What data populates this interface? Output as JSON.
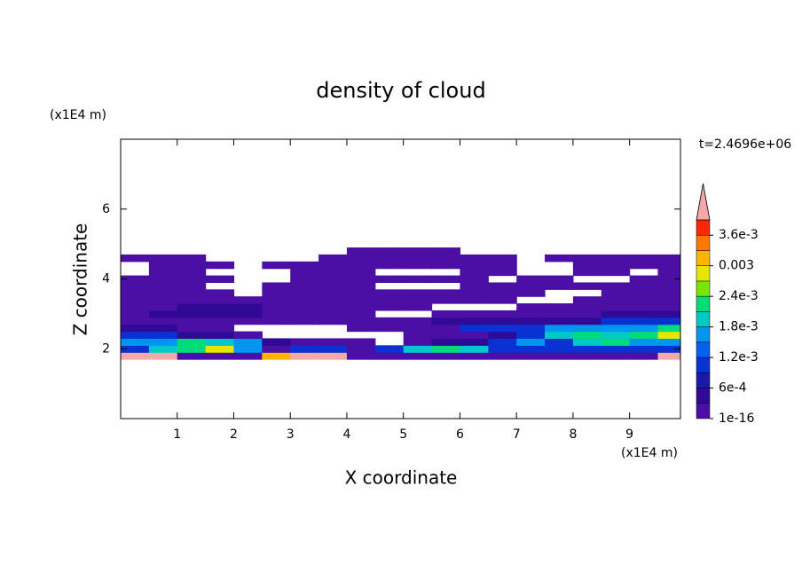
{
  "chart_data": {
    "type": "contour",
    "title": "density of cloud",
    "x_label": "X coordinate",
    "y_label": "Z coordinate",
    "x_unit": "(x1E4 m)",
    "y_unit": "(x1E4 m)",
    "annotation": "t=2.4696e+06",
    "xlim": [
      0,
      9.9
    ],
    "ylim": [
      0,
      8
    ],
    "xticks": [
      1,
      2,
      3,
      4,
      5,
      6,
      7,
      8,
      9
    ],
    "yticks": [
      2,
      4,
      6
    ],
    "x": [
      0.25,
      0.75,
      1.25,
      1.75,
      2.25,
      2.75,
      3.25,
      3.75,
      4.25,
      4.75,
      5.25,
      5.75,
      6.25,
      6.75,
      7.25,
      7.75,
      8.25,
      8.75,
      9.25,
      9.75
    ],
    "y": [
      1.8,
      2.0,
      2.2,
      2.4,
      2.6,
      2.8,
      3.0,
      3.2,
      3.4,
      3.6,
      3.8,
      4.0,
      4.2,
      4.4,
      4.6,
      4.8
    ],
    "z": [
      [
        0.0045,
        0.0045,
        0.0001,
        0.0001,
        0.0001,
        0.0032,
        0.0045,
        0.0045,
        0.0001,
        0.0001,
        0.0001,
        0.0001,
        0.0001,
        0.0001,
        0.0001,
        0.0001,
        0.0001,
        0.0001,
        0.0001,
        0.0045
      ],
      [
        0.001,
        0.002,
        0.0023,
        0.0028,
        0.0016,
        0.0001,
        0.001,
        0.001,
        0.0001,
        0.001,
        0.002,
        0.0023,
        0.002,
        0.001,
        0.001,
        0.001,
        0.001,
        0.001,
        0.001,
        0.001
      ],
      [
        0.0016,
        0.0016,
        0.0023,
        0.002,
        0.0016,
        0.0004,
        0.0001,
        0.0001,
        0.0001,
        null,
        0.0001,
        0.0004,
        0.0004,
        0.001,
        0.0016,
        0.001,
        0.002,
        0.0023,
        0.0016,
        0.0016
      ],
      [
        0.001,
        0.001,
        0.0004,
        0.0004,
        0.0001,
        null,
        null,
        null,
        null,
        null,
        0.0001,
        0.0001,
        0.0001,
        0.0004,
        0.001,
        0.002,
        0.0023,
        0.002,
        0.0023,
        0.0028
      ],
      [
        0.0004,
        0.0004,
        0.0001,
        0.0001,
        null,
        null,
        null,
        null,
        0.0001,
        0.0001,
        0.0001,
        0.0001,
        0.001,
        0.001,
        0.001,
        0.0016,
        0.0016,
        0.0016,
        0.0016,
        0.0023
      ],
      [
        0.0001,
        0.0001,
        0.0001,
        0.0001,
        0.0001,
        0.0001,
        0.0001,
        0.0001,
        0.0001,
        0.0001,
        0.0001,
        0.0004,
        0.0004,
        0.0004,
        0.0004,
        0.0004,
        0.0004,
        0.001,
        0.001,
        0.001
      ],
      [
        0.0001,
        0.0004,
        0.0004,
        0.0004,
        0.0004,
        0.0001,
        0.0001,
        0.0001,
        0.0001,
        null,
        null,
        0.0001,
        0.0001,
        0.0001,
        0.0001,
        0.0001,
        0.0001,
        0.0004,
        0.0004,
        0.0004
      ],
      [
        0.0001,
        0.0001,
        0.0004,
        0.0004,
        0.0004,
        0.0001,
        0.0001,
        0.0001,
        0.0001,
        0.0001,
        0.0001,
        null,
        null,
        null,
        0.0001,
        0.0001,
        0.0001,
        0.0001,
        0.0001,
        0.0001
      ],
      [
        0.0001,
        0.0001,
        0.0001,
        0.0001,
        0.0001,
        0.0001,
        0.0001,
        0.0001,
        0.0001,
        0.0001,
        0.0001,
        0.0001,
        0.0001,
        0.0001,
        null,
        null,
        0.0001,
        0.0001,
        0.0001,
        0.0001
      ],
      [
        0.0001,
        0.0001,
        0.0001,
        0.0001,
        null,
        0.0001,
        0.0001,
        0.0001,
        0.0001,
        0.0001,
        0.0001,
        0.0001,
        0.0001,
        0.0001,
        0.0001,
        null,
        null,
        0.0001,
        0.0001,
        0.0001
      ],
      [
        0.0001,
        0.0001,
        0.0001,
        null,
        null,
        0.0001,
        0.0001,
        0.0001,
        0.0001,
        null,
        null,
        null,
        0.0001,
        0.0001,
        0.0001,
        0.0001,
        0.0001,
        0.0001,
        0.0001,
        0.0001
      ],
      [
        0.0001,
        0.0001,
        0.0001,
        0.0001,
        null,
        null,
        0.0001,
        0.0001,
        0.0001,
        0.0001,
        0.0001,
        0.0001,
        0.0001,
        null,
        0.0001,
        0.0001,
        null,
        null,
        0.0001,
        0.0001
      ],
      [
        null,
        0.0001,
        0.0001,
        null,
        null,
        null,
        0.0001,
        0.0001,
        0.0001,
        null,
        null,
        null,
        0.0001,
        0.0001,
        null,
        null,
        0.0001,
        0.0001,
        null,
        0.0001
      ],
      [
        null,
        0.0001,
        0.0001,
        0.0001,
        null,
        0.0001,
        0.0001,
        0.0001,
        0.0001,
        0.0001,
        0.0001,
        0.0001,
        0.0001,
        0.0001,
        null,
        null,
        0.0001,
        0.0001,
        0.0001,
        0.0001
      ],
      [
        0.0001,
        0.0001,
        0.0001,
        null,
        null,
        null,
        null,
        0.0001,
        0.0001,
        0.0001,
        0.0001,
        0.0001,
        0.0001,
        0.0001,
        null,
        0.0001,
        0.0001,
        0.0001,
        0.0001,
        0.0001
      ],
      [
        null,
        null,
        null,
        null,
        null,
        null,
        null,
        null,
        0.0001,
        0.0001,
        0.0001,
        0.0001,
        null,
        null,
        null,
        null,
        null,
        null,
        null,
        null
      ]
    ],
    "colorbar": {
      "lim": [
        0,
        0.0039
      ],
      "ticks": [
        {
          "value": 1e-16,
          "label": "1e-16"
        },
        {
          "value": 0.0006,
          "label": "6e-4"
        },
        {
          "value": 0.0012,
          "label": "1.2e-3"
        },
        {
          "value": 0.0018,
          "label": "1.8e-3"
        },
        {
          "value": 0.0024,
          "label": "2.4e-3"
        },
        {
          "value": 0.003,
          "label": "0.003"
        },
        {
          "value": 0.0036,
          "label": "3.6e-3"
        }
      ],
      "colors": [
        "#4b0fa5",
        "#300a96",
        "#1a1aa8",
        "#0a32d2",
        "#0060f0",
        "#0096f0",
        "#00c8c8",
        "#00dc78",
        "#78e600",
        "#e6e600",
        "#ffb400",
        "#ff7800",
        "#ff2800"
      ],
      "extend_color": "#f4a8a8"
    }
  }
}
